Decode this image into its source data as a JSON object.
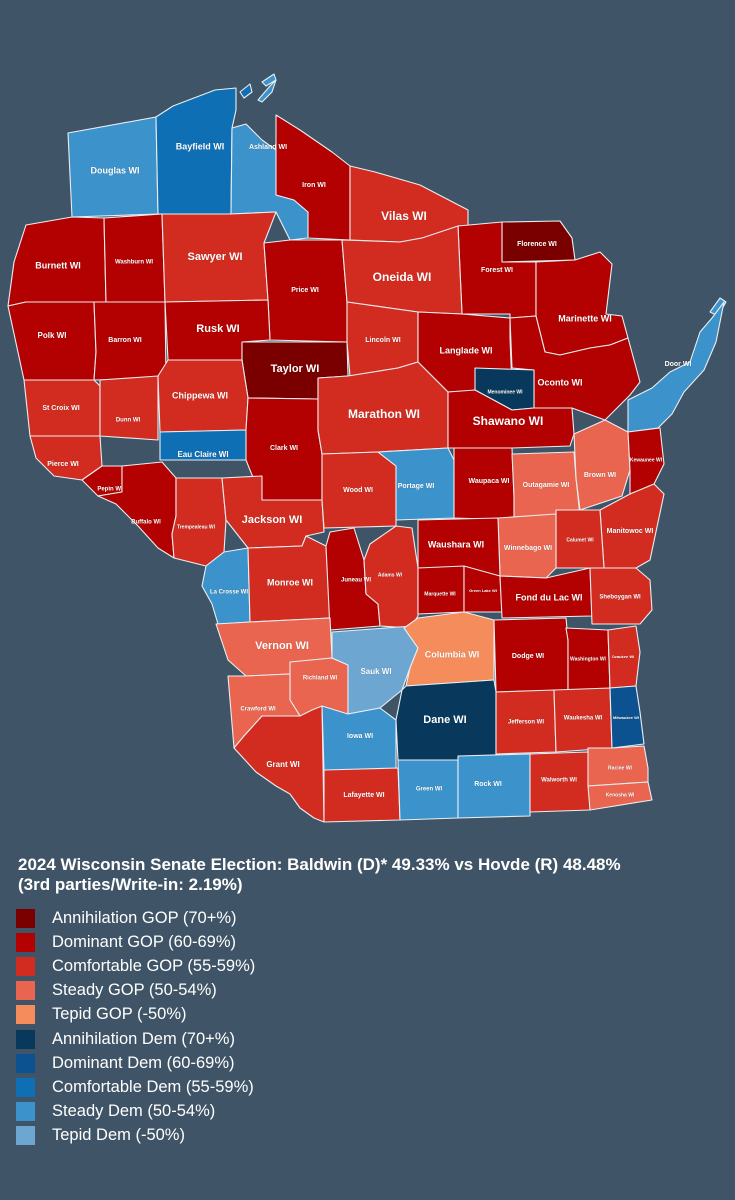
{
  "title": "2024 Wisconsin Senate Election: Baldwin (D)* 49.33% vs Hovde (R) 48.48%",
  "subtitle": "(3rd parties/Write-in: 2.19%)",
  "legend": [
    {
      "key": "annihilation-gop",
      "label": "Annihilation GOP (70+%)",
      "color": "#7a0000"
    },
    {
      "key": "dominant-gop",
      "label": "Dominant GOP (60-69%)",
      "color": "#b30000"
    },
    {
      "key": "comfortable-gop",
      "label": "Comfortable GOP  (55-59%)",
      "color": "#d22c20"
    },
    {
      "key": "steady-gop",
      "label": "Steady GOP (50-54%)",
      "color": "#e96550"
    },
    {
      "key": "tepid-gop",
      "label": "Tepid GOP (-50%)",
      "color": "#f58c5c"
    },
    {
      "key": "annihilation-dem",
      "label": "Annihilation Dem  (70+%)",
      "color": "#08395c"
    },
    {
      "key": "dominant-dem",
      "label": "Dominant Dem (60-69%)",
      "color": "#0c5290"
    },
    {
      "key": "comfortable-dem",
      "label": "Comfortable Dem (55-59%)",
      "color": "#0f6fb5"
    },
    {
      "key": "steady-dem",
      "label": "Steady Dem (50-54%)",
      "color": "#3c92cb"
    },
    {
      "key": "tepid-dem",
      "label": "Tepid Dem (-50%)",
      "color": "#6ea6d2"
    }
  ],
  "counties": [
    {
      "name": "Douglas WI",
      "category": "steady-dem"
    },
    {
      "name": "Bayfield WI",
      "category": "comfortable-dem"
    },
    {
      "name": "Ashland WI",
      "category": "steady-dem"
    },
    {
      "name": "Iron WI",
      "category": "dominant-gop"
    },
    {
      "name": "Vilas WI",
      "category": "comfortable-gop"
    },
    {
      "name": "Florence WI",
      "category": "annihilation-gop"
    },
    {
      "name": "Forest WI",
      "category": "dominant-gop"
    },
    {
      "name": "Marinette WI",
      "category": "dominant-gop"
    },
    {
      "name": "Burnett WI",
      "category": "dominant-gop"
    },
    {
      "name": "Washburn WI",
      "category": "dominant-gop"
    },
    {
      "name": "Sawyer WI",
      "category": "comfortable-gop"
    },
    {
      "name": "Price WI",
      "category": "dominant-gop"
    },
    {
      "name": "Oneida WI",
      "category": "comfortable-gop"
    },
    {
      "name": "Polk WI",
      "category": "dominant-gop"
    },
    {
      "name": "Barron WI",
      "category": "dominant-gop"
    },
    {
      "name": "Rusk WI",
      "category": "dominant-gop"
    },
    {
      "name": "Taylor WI",
      "category": "annihilation-gop"
    },
    {
      "name": "Lincoln WI",
      "category": "comfortable-gop"
    },
    {
      "name": "Langlade WI",
      "category": "dominant-gop"
    },
    {
      "name": "Oconto WI",
      "category": "dominant-gop"
    },
    {
      "name": "Menominee WI",
      "category": "annihilation-dem"
    },
    {
      "name": "Door WI",
      "category": "steady-dem"
    },
    {
      "name": "St Croix WI",
      "category": "comfortable-gop"
    },
    {
      "name": "Dunn WI",
      "category": "comfortable-gop"
    },
    {
      "name": "Chippewa WI",
      "category": "comfortable-gop"
    },
    {
      "name": "Eau Claire WI",
      "category": "comfortable-dem"
    },
    {
      "name": "Clark WI",
      "category": "dominant-gop"
    },
    {
      "name": "Marathon WI",
      "category": "comfortable-gop"
    },
    {
      "name": "Shawano WI",
      "category": "dominant-gop"
    },
    {
      "name": "Pierce WI",
      "category": "comfortable-gop"
    },
    {
      "name": "Pepin WI",
      "category": "dominant-gop"
    },
    {
      "name": "Buffalo WI",
      "category": "dominant-gop"
    },
    {
      "name": "Trempealeau WI",
      "category": "comfortable-gop"
    },
    {
      "name": "Jackson WI",
      "category": "comfortable-gop"
    },
    {
      "name": "Wood WI",
      "category": "comfortable-gop"
    },
    {
      "name": "Portage WI",
      "category": "steady-dem"
    },
    {
      "name": "Waupaca WI",
      "category": "dominant-gop"
    },
    {
      "name": "Outagamie WI",
      "category": "steady-gop"
    },
    {
      "name": "Brown WI",
      "category": "steady-gop"
    },
    {
      "name": "Kewaunee WI",
      "category": "dominant-gop"
    },
    {
      "name": "Manitowoc WI",
      "category": "comfortable-gop"
    },
    {
      "name": "Calumet WI",
      "category": "comfortable-gop"
    },
    {
      "name": "Winnebago WI",
      "category": "steady-gop"
    },
    {
      "name": "Waushara WI",
      "category": "dominant-gop"
    },
    {
      "name": "La Crosse WI",
      "category": "steady-dem"
    },
    {
      "name": "Monroe WI",
      "category": "comfortable-gop"
    },
    {
      "name": "Juneau WI",
      "category": "dominant-gop"
    },
    {
      "name": "Adams WI",
      "category": "comfortable-gop"
    },
    {
      "name": "Marquette WI",
      "category": "dominant-gop"
    },
    {
      "name": "Green Lake WI",
      "category": "dominant-gop"
    },
    {
      "name": "Fond du Lac WI",
      "category": "dominant-gop"
    },
    {
      "name": "Sheboygan WI",
      "category": "comfortable-gop"
    },
    {
      "name": "Vernon WI",
      "category": "steady-gop"
    },
    {
      "name": "Richland WI",
      "category": "steady-gop"
    },
    {
      "name": "Sauk WI",
      "category": "tepid-dem"
    },
    {
      "name": "Columbia WI",
      "category": "tepid-gop"
    },
    {
      "name": "Dodge WI",
      "category": "dominant-gop"
    },
    {
      "name": "Washington WI",
      "category": "dominant-gop"
    },
    {
      "name": "Ozaukee WI",
      "category": "comfortable-gop"
    },
    {
      "name": "Crawford WI",
      "category": "steady-gop"
    },
    {
      "name": "Grant WI",
      "category": "comfortable-gop"
    },
    {
      "name": "Iowa WI",
      "category": "steady-dem"
    },
    {
      "name": "Dane WI",
      "category": "annihilation-dem"
    },
    {
      "name": "Jefferson WI",
      "category": "comfortable-gop"
    },
    {
      "name": "Waukesha WI",
      "category": "comfortable-gop"
    },
    {
      "name": "Milwaukee WI",
      "category": "dominant-dem"
    },
    {
      "name": "Lafayette WI",
      "category": "comfortable-gop"
    },
    {
      "name": "Green WI",
      "category": "steady-dem"
    },
    {
      "name": "Rock WI",
      "category": "steady-dem"
    },
    {
      "name": "Walworth WI",
      "category": "comfortable-gop"
    },
    {
      "name": "Racine WI",
      "category": "steady-gop"
    },
    {
      "name": "Kenosha WI",
      "category": "steady-gop"
    }
  ]
}
